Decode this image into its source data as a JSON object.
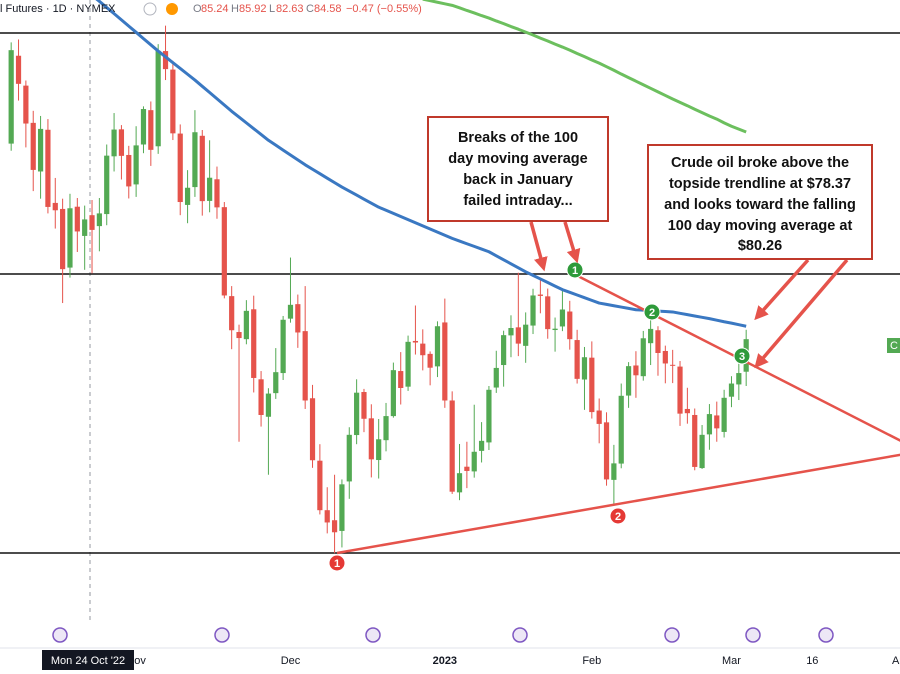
{
  "header": {
    "title": "l Futures · 1D · NYMEX",
    "ohlc": [
      {
        "key": "O",
        "value": 85.24
      },
      {
        "key": "H",
        "value": 85.92
      },
      {
        "key": "L",
        "value": 82.63
      },
      {
        "key": "C",
        "value": 84.58
      }
    ],
    "change": "−0.47 (−0.55%)"
  },
  "chart_data": {
    "type": "candlestick",
    "ylim": [
      67.31,
      94.89
    ],
    "up_color": "#53a953",
    "down_color": "#e5534b",
    "categories": [
      null,
      null,
      null,
      null,
      null,
      null,
      null,
      null,
      null,
      null,
      null,
      null,
      null,
      null,
      null,
      null,
      null,
      "Nov",
      null,
      null,
      null,
      null,
      null,
      null,
      null,
      null,
      null,
      null,
      null,
      null,
      null,
      null,
      null,
      null,
      null,
      null,
      null,
      null,
      "Dec",
      null,
      null,
      null,
      null,
      null,
      null,
      null,
      null,
      null,
      null,
      null,
      null,
      null,
      null,
      null,
      null,
      null,
      null,
      null,
      null,
      "2023",
      null,
      null,
      null,
      null,
      null,
      null,
      null,
      null,
      null,
      null,
      null,
      null,
      null,
      null,
      null,
      null,
      null,
      null,
      null,
      "Feb",
      null,
      null,
      null,
      null,
      null,
      null,
      null,
      null,
      null,
      null,
      null,
      null,
      null,
      null,
      null,
      null,
      null,
      null,
      "Mar",
      null,
      null,
      null,
      null,
      null,
      null,
      null,
      null,
      null,
      null,
      "16",
      null,
      null,
      null,
      null,
      null,
      null,
      null,
      null,
      null,
      null,
      null,
      "Apr"
    ],
    "open": [
      88.45,
      92.39,
      91.05,
      89.38,
      87.2,
      89.07,
      85.79,
      85.52,
      82.89,
      85.62,
      84.31,
      85.24,
      84.75,
      85.29,
      87.88,
      89.09,
      87.94,
      86.62,
      88.41,
      89.95,
      88.33,
      92.6,
      91.77,
      88.9,
      85.7,
      86.5,
      88.8,
      85.88,
      86.85,
      85.6,
      81.61,
      80.0,
      79.68,
      81.02,
      77.88,
      76.2,
      77.26,
      78.16,
      80.6,
      81.25,
      80.04,
      77.03,
      74.23,
      72.01,
      71.56,
      71.08,
      73.3,
      75.38,
      77.31,
      76.13,
      74.26,
      75.15,
      76.23,
      78.25,
      77.55,
      79.6,
      79.48,
      79.02,
      78.46,
      80.43,
      76.93,
      72.81,
      73.96,
      73.75,
      74.67,
      75.05,
      77.51,
      78.52,
      79.85,
      80.21,
      79.38,
      80.29,
      81.68,
      81.6,
      80.09,
      80.25,
      80.92,
      79.64,
      77.87,
      78.85,
      76.48,
      75.95,
      73.37,
      74.1,
      77.15,
      78.5,
      78.02,
      79.5,
      80.08,
      79.15,
      78.53,
      78.45,
      76.55,
      76.28,
      73.9,
      75.41,
      76.26,
      75.52,
      77.1,
      77.65,
      78.22,
      null,
      null,
      null,
      null,
      null,
      null,
      null,
      null,
      null,
      null,
      null,
      null,
      null,
      null,
      null,
      null,
      null,
      null,
      null,
      null,
      null
    ],
    "high": [
      92.99,
      93.12,
      91.28,
      89.92,
      89.69,
      89.55,
      86.91,
      85.98,
      86.2,
      86.01,
      85.67,
      85.92,
      86.01,
      88.41,
      89.82,
      89.28,
      88.35,
      89.23,
      90.12,
      90.34,
      92.91,
      93.74,
      92.16,
      89.31,
      87.26,
      89.95,
      89.06,
      88.6,
      87.42,
      85.83,
      82.06,
      80.33,
      81.43,
      81.63,
      78.25,
      77.48,
      79.28,
      80.72,
      83.34,
      81.68,
      82.06,
      77.63,
      74.97,
      73.04,
      73.6,
      73.39,
      75.73,
      77.88,
      77.45,
      76.76,
      76.1,
      76.82,
      78.63,
      79.1,
      79.84,
      81.19,
      80.12,
      79.13,
      80.48,
      81.5,
      77.34,
      74.98,
      75.08,
      76.74,
      75.96,
      77.58,
      79.16,
      80.06,
      80.75,
      82.66,
      80.88,
      81.94,
      82.4,
      81.95,
      80.65,
      81.88,
      81.4,
      80.1,
      79.33,
      79.58,
      77.02,
      76.4,
      74.94,
      77.69,
      78.65,
      79.14,
      80.05,
      80.62,
      80.26,
      79.39,
      79.2,
      78.7,
      77.5,
      76.57,
      75.83,
      76.77,
      76.88,
      77.41,
      78.02,
      78.62,
      80.1,
      null,
      null,
      null,
      null,
      null,
      null,
      null,
      null,
      null,
      null,
      null,
      null,
      null,
      null,
      null,
      null,
      null,
      null,
      null,
      null,
      null
    ],
    "low": [
      88.13,
      90.38,
      88.28,
      86.32,
      85.98,
      85.32,
      84.64,
      81.3,
      82.44,
      83.59,
      82.79,
      82.63,
      83.62,
      84.79,
      87.2,
      86.84,
      85.99,
      86.06,
      88.02,
      87.45,
      87.99,
      91.3,
      88.61,
      85.24,
      84.88,
      86.06,
      85.22,
      85.37,
      85.08,
      81.51,
      79.23,
      75.08,
      79.45,
      77.29,
      75.76,
      73.6,
      77.0,
      77.85,
      80.42,
      79.29,
      76.55,
      73.91,
      71.82,
      70.97,
      70.08,
      70.34,
      72.52,
      74.97,
      75.51,
      73.48,
      73.43,
      74.65,
      76.16,
      76.75,
      77.36,
      78.99,
      78.28,
      77.61,
      77.98,
      76.6,
      72.74,
      72.46,
      73.0,
      73.47,
      74.15,
      74.71,
      77.27,
      77.55,
      78.87,
      78.92,
      78.62,
      79.91,
      80.84,
      79.7,
      79.12,
      80.04,
      79.21,
      77.69,
      76.51,
      76.12,
      75.01,
      73.11,
      72.25,
      73.89,
      76.6,
      77.05,
      77.82,
      78.52,
      78.04,
      77.7,
      77.71,
      75.79,
      75.89,
      73.8,
      73.86,
      74.72,
      75.08,
      75.27,
      76.63,
      76.95,
      77.58,
      null,
      null,
      null,
      null,
      null,
      null,
      null,
      null,
      null,
      null,
      null,
      null,
      null,
      null,
      null,
      null,
      null,
      null,
      null,
      null,
      null
    ],
    "close": [
      92.64,
      91.13,
      89.35,
      87.27,
      89.11,
      85.61,
      85.46,
      82.82,
      85.55,
      84.51,
      85.05,
      84.58,
      85.32,
      87.91,
      89.08,
      87.9,
      86.53,
      88.37,
      90.0,
      88.17,
      92.61,
      91.79,
      88.91,
      85.83,
      86.47,
      88.96,
      85.87,
      86.92,
      85.59,
      81.64,
      80.08,
      79.73,
      80.95,
      77.94,
      76.28,
      77.24,
      78.2,
      80.55,
      81.22,
      79.98,
      76.93,
      74.25,
      72.01,
      71.46,
      71.02,
      73.17,
      75.39,
      77.28,
      76.11,
      74.29,
      75.19,
      76.23,
      78.29,
      77.49,
      79.56,
      79.53,
      78.96,
      78.4,
      80.26,
      76.93,
      72.84,
      73.67,
      73.77,
      74.63,
      75.12,
      77.41,
      78.39,
      79.86,
      80.18,
      79.48,
      80.33,
      81.64,
      81.62,
      80.13,
      80.15,
      81.01,
      79.68,
      77.9,
      78.87,
      76.41,
      75.88,
      73.39,
      74.11,
      77.14,
      78.47,
      78.06,
      79.72,
      80.14,
      79.06,
      78.59,
      78.49,
      76.34,
      76.36,
      73.95,
      75.39,
      76.32,
      75.68,
      77.05,
      77.69,
      78.16,
      79.68,
      null,
      null,
      null,
      null,
      null,
      null,
      null,
      null,
      null,
      null,
      null,
      null,
      null,
      null,
      null,
      null,
      null,
      null,
      null,
      null,
      null
    ],
    "overlays": [
      {
        "color": "#3a78c2",
        "values": [
          null,
          null,
          null,
          null,
          null,
          null,
          null,
          null,
          null,
          null,
          null,
          95.1,
          94.83,
          94.55,
          94.28,
          94.0,
          93.72,
          93.44,
          93.16,
          92.88,
          92.6,
          92.34,
          92.08,
          91.82,
          91.56,
          91.3,
          91.02,
          90.74,
          90.46,
          90.18,
          89.9,
          89.64,
          89.38,
          89.12,
          88.86,
          88.6,
          88.38,
          88.16,
          87.94,
          87.72,
          87.5,
          87.3,
          87.1,
          86.9,
          86.7,
          86.5,
          86.32,
          86.14,
          85.96,
          85.78,
          85.6,
          85.46,
          85.32,
          85.18,
          85.04,
          84.9,
          84.76,
          84.62,
          84.48,
          84.34,
          84.2,
          84.08,
          83.96,
          83.84,
          83.72,
          83.6,
          83.42,
          83.24,
          83.06,
          82.88,
          82.7,
          82.54,
          82.38,
          82.22,
          82.06,
          81.9,
          81.78,
          81.66,
          81.54,
          81.42,
          81.3,
          81.24,
          81.18,
          81.12,
          81.06,
          81.0,
          80.98,
          80.96,
          80.94,
          80.92,
          80.9,
          80.84,
          80.78,
          80.72,
          80.66,
          80.6,
          80.53,
          80.46,
          80.4,
          80.33,
          80.26,
          null,
          null,
          null,
          null,
          null,
          null,
          null,
          null,
          null,
          null,
          null,
          null,
          null,
          null,
          null,
          null,
          null,
          null,
          null,
          null,
          null
        ]
      },
      {
        "color": "#6cbf5e",
        "values": [
          null,
          null,
          null,
          null,
          null,
          null,
          null,
          null,
          null,
          null,
          null,
          null,
          null,
          null,
          null,
          null,
          null,
          null,
          null,
          null,
          null,
          null,
          null,
          null,
          null,
          null,
          null,
          null,
          null,
          null,
          null,
          null,
          null,
          null,
          null,
          null,
          null,
          null,
          null,
          null,
          null,
          null,
          null,
          null,
          null,
          null,
          null,
          null,
          null,
          null,
          null,
          null,
          null,
          null,
          null,
          null,
          94.93,
          94.86,
          94.79,
          94.72,
          94.65,
          94.54,
          94.42,
          94.31,
          94.19,
          94.08,
          93.95,
          93.83,
          93.7,
          93.58,
          93.45,
          93.32,
          93.18,
          93.05,
          92.91,
          92.78,
          92.64,
          92.49,
          92.35,
          92.2,
          92.06,
          91.9,
          91.74,
          91.57,
          91.41,
          91.25,
          91.09,
          90.93,
          90.77,
          90.61,
          90.45,
          90.3,
          90.15,
          89.99,
          89.84,
          89.69,
          89.55,
          89.38,
          89.23,
          89.1,
          88.97,
          null,
          null,
          null,
          null,
          null,
          null,
          null,
          null,
          null,
          null,
          null,
          null,
          null,
          null,
          null,
          null,
          null,
          null,
          null,
          null,
          null
        ]
      }
    ],
    "crosshair_label": "Mon 24 Oct '22",
    "price_tag": "C",
    "markers": [
      {
        "label": "1",
        "color": "#2e9a3a"
      },
      {
        "label": "2",
        "color": "#2e9a3a"
      },
      {
        "label": "3",
        "color": "#2e9a3a"
      },
      {
        "label": "1",
        "color": "#e53935"
      },
      {
        "label": "2",
        "color": "#e53935"
      }
    ],
    "annotations": [
      {
        "lines": [
          "Breaks of the 100",
          "day moving average",
          "back in January",
          "failed intraday..."
        ]
      },
      {
        "lines": [
          "Crude oil broke above the",
          "topside trendline at $78.37",
          "and looks toward the falling",
          "100 day moving average at",
          "$80.26"
        ]
      }
    ]
  }
}
